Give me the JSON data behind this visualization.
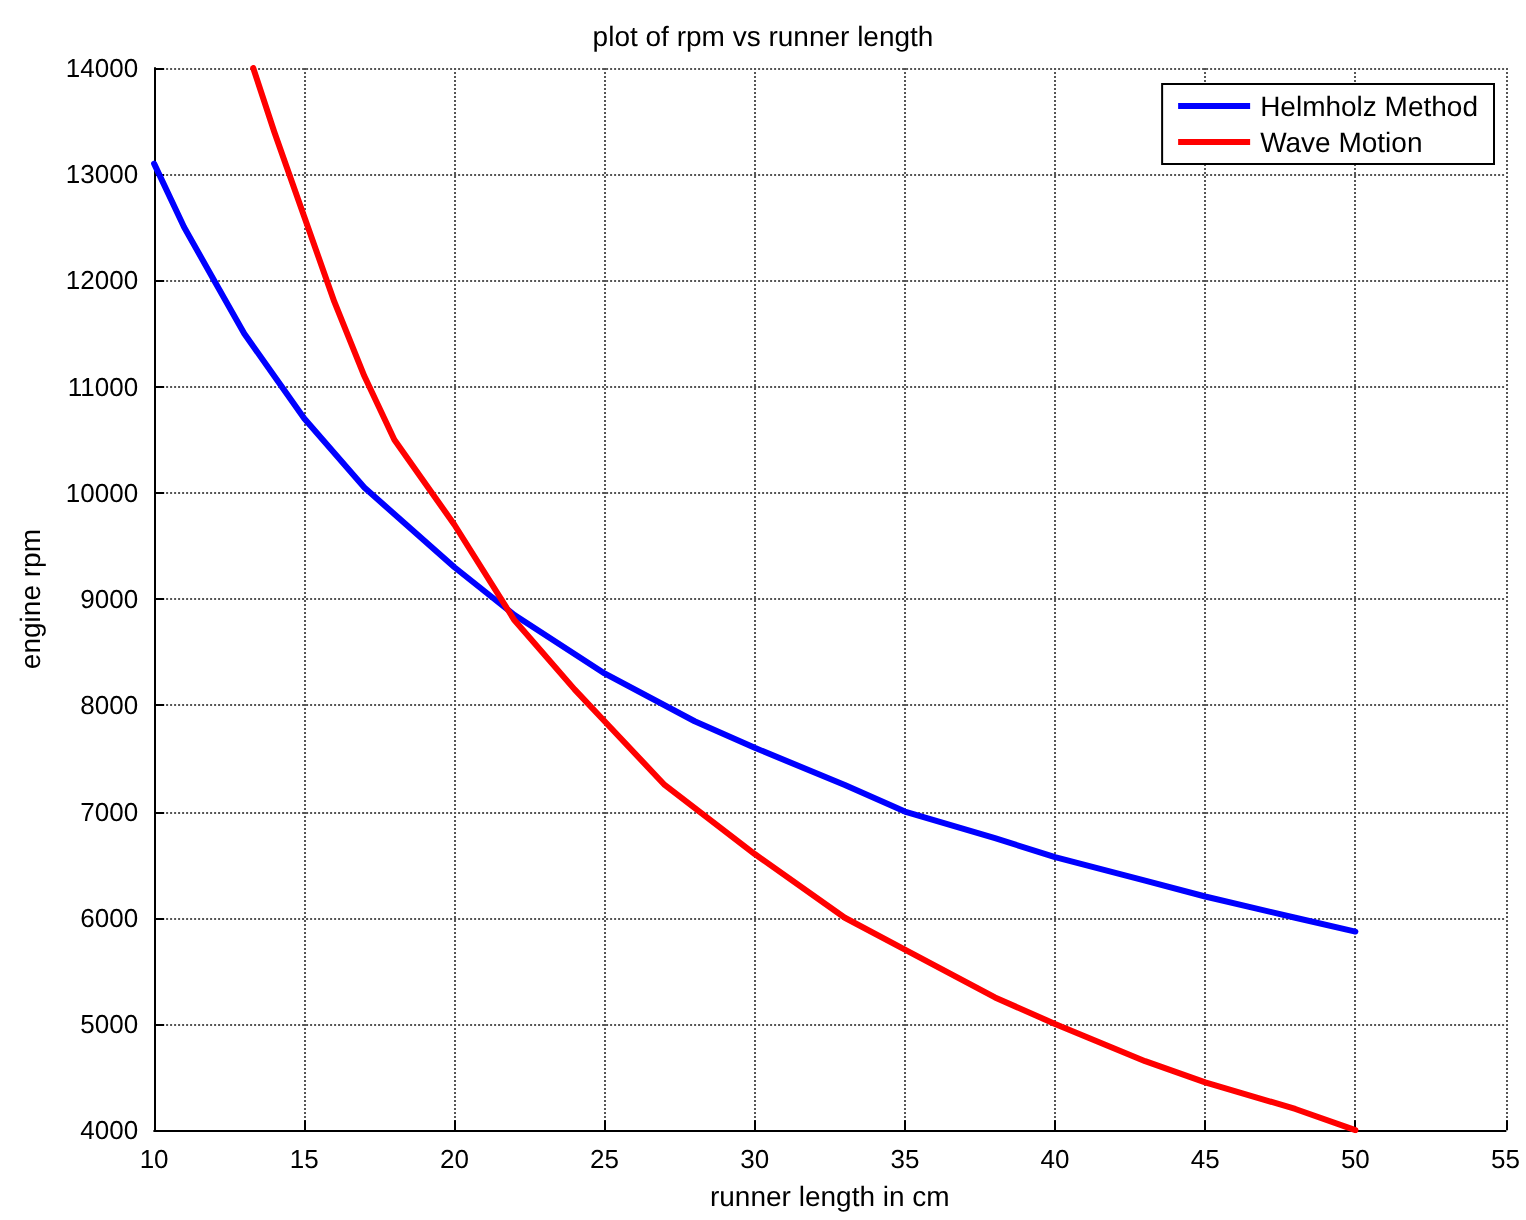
{
  "chart_data": {
    "type": "line",
    "title": "plot of rpm vs runner length",
    "xlabel": "runner length in cm",
    "ylabel": "engine rpm",
    "xlim": [
      10,
      55
    ],
    "xticks": [
      10,
      15,
      20,
      25,
      30,
      35,
      40,
      45,
      50,
      55
    ],
    "ylim": [
      4000,
      14000
    ],
    "yticks": [
      4000,
      5000,
      6000,
      7000,
      8000,
      9000,
      10000,
      11000,
      12000,
      13000,
      14000
    ],
    "grid": true,
    "legend": "top right",
    "marker": "none",
    "line_style": "solid",
    "series": [
      {
        "name": "Helmholz Method",
        "color": "#0000ff",
        "x": [
          10,
          11,
          12,
          13,
          14,
          15,
          17,
          20,
          22,
          25,
          28,
          30,
          33,
          35,
          38,
          40,
          43,
          45,
          48,
          50
        ],
        "values": [
          13100,
          12500,
          12000,
          11500,
          11100,
          10700,
          10050,
          9300,
          8850,
          8300,
          7850,
          7600,
          7250,
          7000,
          6750,
          6570,
          6350,
          6200,
          6000,
          5870
        ]
      },
      {
        "name": "Wave Motion",
        "color": "#ff0000",
        "x": [
          13.3,
          14,
          15,
          16,
          17,
          18,
          20,
          22,
          24,
          25,
          27,
          30,
          33,
          35,
          38,
          40,
          43,
          45,
          48,
          50
        ],
        "values": [
          14000,
          13400,
          12600,
          11800,
          11100,
          10500,
          9700,
          8800,
          8150,
          7850,
          7250,
          6600,
          6000,
          5700,
          5250,
          5000,
          4650,
          4450,
          4200,
          4000
        ]
      }
    ]
  }
}
